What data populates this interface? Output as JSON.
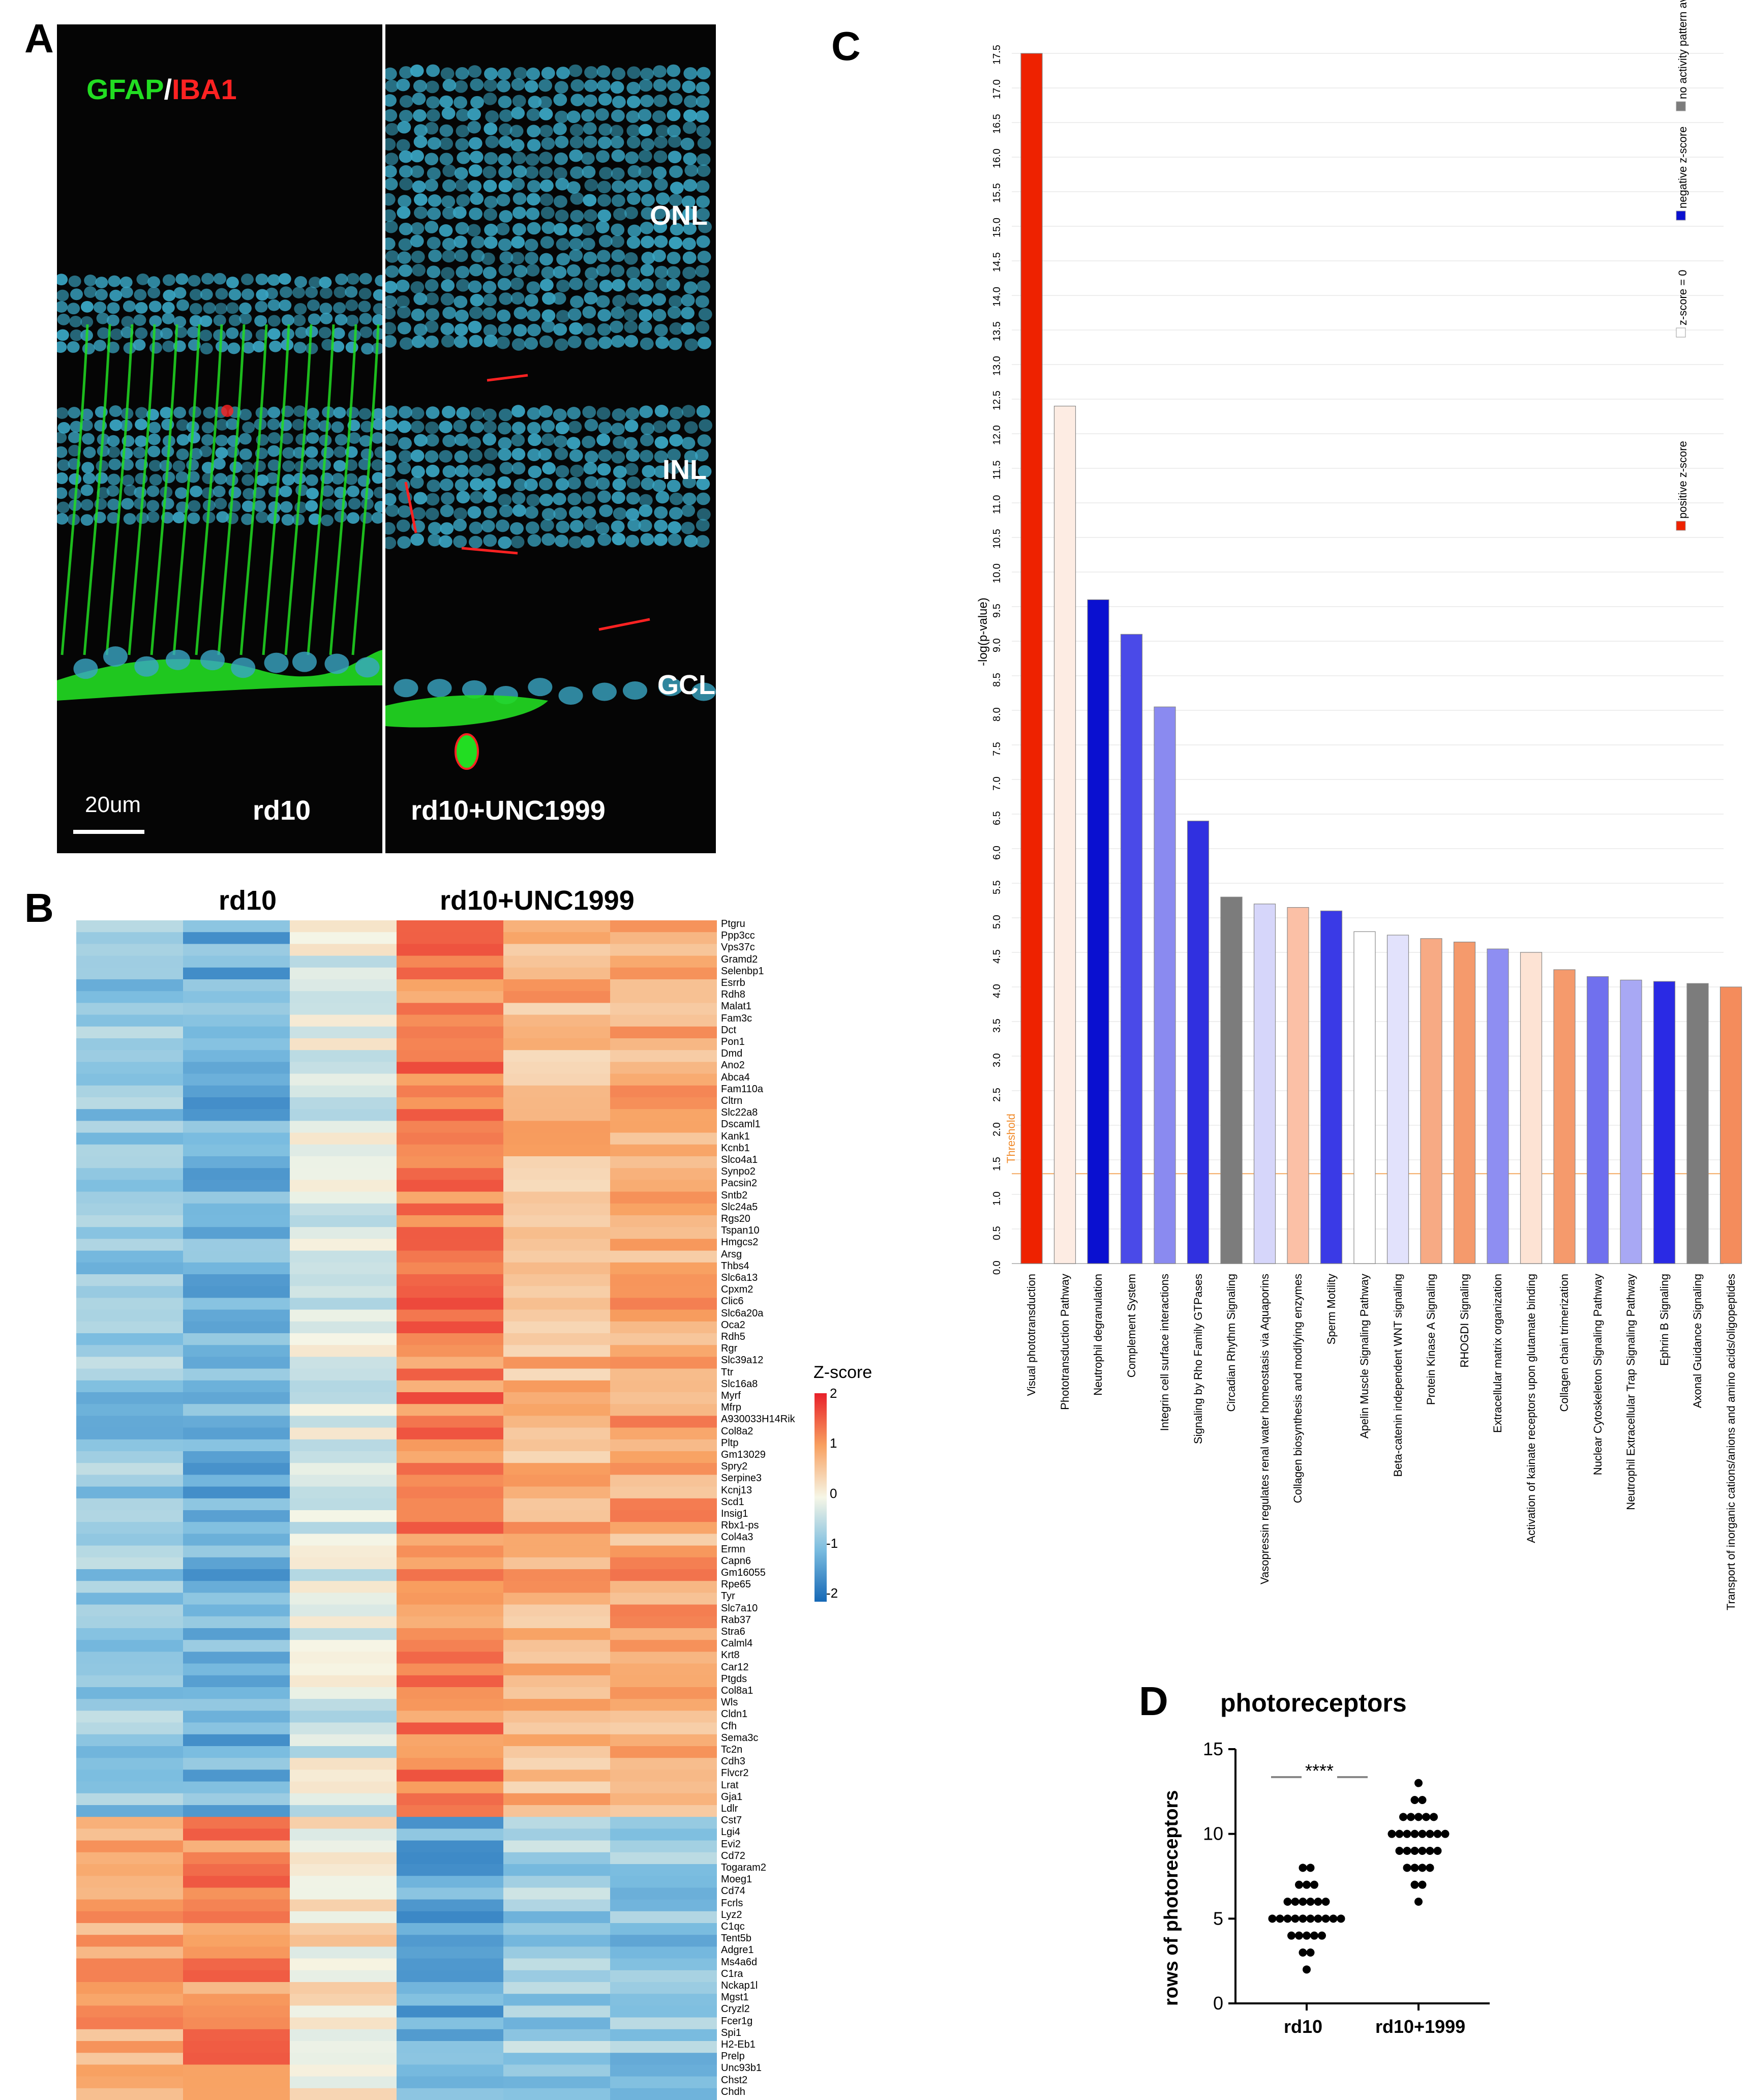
{
  "panels": {
    "a": "A",
    "b": "B",
    "c": "C",
    "d": "D"
  },
  "panelA": {
    "stain_green": "GFAP",
    "stain_sep": "/",
    "stain_red": "IBA1",
    "layers": [
      "ONL",
      "INL",
      "GCL"
    ],
    "scale_bar": "20um",
    "left_label": "rd10",
    "right_label": "rd10+UNC1999",
    "colors": {
      "green": "#22dd22",
      "red": "#ff2222",
      "nuclei": "#3aa6c4"
    }
  },
  "panelB": {
    "group_left": "rd10",
    "group_right": "rd10+UNC1999",
    "colorbar_title": "Z-score",
    "colorbar_ticks": [
      "2",
      "1",
      "0",
      "-1",
      "-2"
    ],
    "genes_up": [
      "Ptgru",
      "Ppp3cc",
      "Vps37c",
      "Gramd2",
      "Selenbp1",
      "Esrrb",
      "Rdh8",
      "Malat1",
      "Fam3c",
      "Dct",
      "Pon1",
      "Dmd",
      "Ano2",
      "Abca4",
      "Fam110a",
      "Cltrn",
      "Slc22a8",
      "Dscaml1",
      "Kank1",
      "Kcnb1",
      "Slco4a1",
      "Synpo2",
      "Pacsin2",
      "Sntb2",
      "Slc24a5",
      "Rgs20",
      "Tspan10",
      "Hmgcs2",
      "Arsg",
      "Thbs4",
      "Slc6a13",
      "Cpxm2",
      "Clic6",
      "Slc6a20a",
      "Oca2",
      "Rdh5",
      "Rgr",
      "Slc39a12",
      "Ttr",
      "Slc16a8",
      "Myrf",
      "Mfrp",
      "A930033H14Rik",
      "Col8a2",
      "Pltp",
      "Gm13029",
      "Spry2",
      "Serpine3",
      "Kcnj13",
      "Scd1",
      "Insig1",
      "Rbx1-ps",
      "Col4a3",
      "Ermn",
      "Capn6",
      "Gm16055",
      "Rpe65",
      "Tyr",
      "Slc7a10",
      "Rab37",
      "Stra6",
      "Calml4",
      "Krt8",
      "Car12",
      "Ptgds",
      "Col8a1",
      "Wls",
      "Cldn1",
      "Cfh",
      "Sema3c",
      "Tc2n",
      "Cdh3",
      "Flvcr2",
      "Lrat",
      "Gja1",
      "Ldlr"
    ],
    "genes_down": [
      "Cst7",
      "Lgi4",
      "Evi2",
      "Cd72",
      "Togaram2",
      "Moeg1",
      "Cd74",
      "Fcrls",
      "Lyz2",
      "C1qc",
      "Tent5b",
      "Adgre1",
      "Ms4a6d",
      "C1ra",
      "Nckap1l",
      "Mgst1",
      "Cryzl2",
      "Fcer1g",
      "Spi1",
      "H2-Eb1",
      "Prelp",
      "Unc93b1",
      "Chst2",
      "Chdh"
    ]
  },
  "chart_data": [
    {
      "type": "bar",
      "title": "",
      "ylabel": "-log(p-value)",
      "ylim": [
        0,
        17.5
      ],
      "threshold": 1.3,
      "threshold_label": "Threshold",
      "yticks": [
        "0.0",
        "0.5",
        "1.0",
        "1.5",
        "2.0",
        "2.5",
        "3.0",
        "3.5",
        "4.0",
        "4.5",
        "5.0",
        "5.5",
        "6.0",
        "6.5",
        "7.0",
        "7.5",
        "8.0",
        "8.5",
        "9.0",
        "9.5",
        "10.0",
        "10.5",
        "11.0",
        "11.5",
        "12.0",
        "12.5",
        "13.0",
        "13.5",
        "14.0",
        "14.5",
        "15.0",
        "15.5",
        "16.0",
        "16.5",
        "17.0",
        "17.5"
      ],
      "categories": [
        "Visual phototransduction",
        "Phototransduction Pathway",
        "Neutrophil degranulation",
        "Complement System",
        "Integrin cell surface interactions",
        "Signaling by Rho Family GTPases",
        "Circadian Rhythm Signaling",
        "Vasopressin regulates renal water homeostasis via Aquaporins",
        "Collagen biosynthesis and modifying enzymes",
        "Sperm Motility",
        "Apelin Muscle Signaling Pathway",
        "Beta-catenin independent WNT signaling",
        "Protein Kinase A Signaling",
        "RHOGDI Signaling",
        "Extracellular matrix organization",
        "Activation of kainate receptors upon glutamate binding",
        "Collagen chain trimerization",
        "Nuclear Cytoskeleton Signaling Pathway",
        "Neutrophil Extracellular Trap Signaling Pathway",
        "Ephrin B Signaling",
        "Axonal Guidance Signaling",
        "Transport of inorganic cations/anions and amino acids/oligopeptides"
      ],
      "values": [
        17.5,
        12.4,
        9.6,
        9.1,
        8.05,
        6.4,
        5.3,
        5.2,
        5.15,
        5.1,
        4.8,
        4.75,
        4.7,
        4.65,
        4.55,
        4.5,
        4.25,
        4.15,
        4.1,
        4.08,
        4.05,
        4.0
      ],
      "colors": [
        "#ee2200",
        "#fdece3",
        "#0a10d0",
        "#4a4ae8",
        "#8a8af0",
        "#3030e0",
        "#7c7c7c",
        "#d6d6fa",
        "#fbc0a6",
        "#3a3ae6",
        "#ffffff",
        "#e2e2fc",
        "#f7aa84",
        "#f59a6c",
        "#8e8ef2",
        "#fde3d4",
        "#f59a6c",
        "#7070ee",
        "#a8a8f4",
        "#2a2ae4",
        "#7c7c7c",
        "#f48c5c"
      ],
      "legend": [
        {
          "label": "positive z-score",
          "color": "#ee2200"
        },
        {
          "label": "z-score = 0",
          "color": "#ffffff"
        },
        {
          "label": "negative z-score",
          "color": "#0a10d0"
        },
        {
          "label": "no activity pattern available",
          "color": "#7c7c7c"
        }
      ]
    },
    {
      "type": "scatter",
      "title": "photoreceptors",
      "ylabel": "rows of photoreceptors",
      "categories": [
        "rd10",
        "rd10+1999"
      ],
      "ylim": [
        0,
        15
      ],
      "yticks": [
        "0",
        "5",
        "10",
        "15"
      ],
      "significance": "****",
      "series": [
        {
          "name": "rd10",
          "values": [
            2,
            3,
            3,
            4,
            4,
            4,
            4,
            4,
            5,
            5,
            5,
            5,
            5,
            5,
            5,
            5,
            5,
            5,
            6,
            6,
            6,
            6,
            6,
            6,
            7,
            7,
            7,
            8,
            8
          ]
        },
        {
          "name": "rd10+1999",
          "values": [
            6,
            7,
            7,
            8,
            8,
            8,
            8,
            9,
            9,
            9,
            9,
            9,
            9,
            10,
            10,
            10,
            10,
            10,
            10,
            10,
            10,
            11,
            11,
            11,
            11,
            11,
            12,
            12,
            13
          ]
        }
      ]
    }
  ]
}
